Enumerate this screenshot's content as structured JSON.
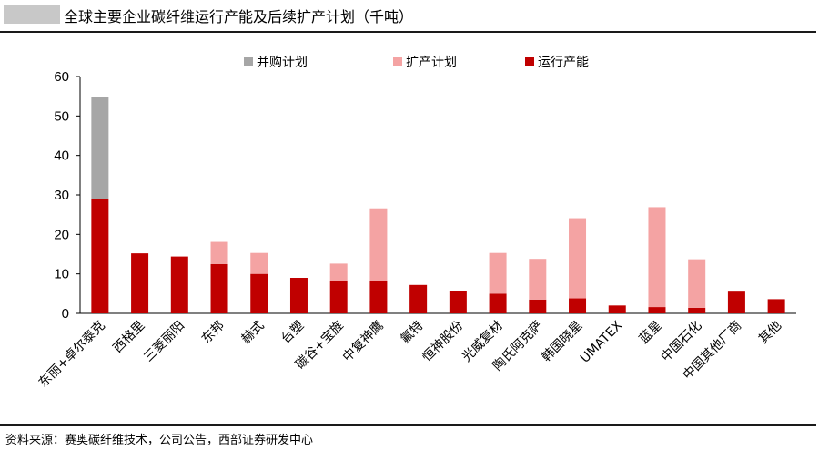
{
  "header": {
    "title": "全球主要企业碳纤维运行产能及后续扩产计划（千吨）"
  },
  "footer": {
    "source": "资料来源：赛奥碳纤维技术，公司公告，西部证券研发中心"
  },
  "colors": {
    "operating": "#c00000",
    "expansion": "#f4a3a3",
    "acquisition": "#a6a6a6"
  },
  "chart_data": {
    "type": "bar",
    "stacked": true,
    "title": "全球主要企业碳纤维运行产能及后续扩产计划（千吨）",
    "xlabel": "",
    "ylabel": "",
    "ylim": [
      0,
      60
    ],
    "yticks": [
      0,
      10,
      20,
      30,
      40,
      50,
      60
    ],
    "grid": false,
    "legend_position": "top",
    "categories": [
      "东丽+卓尔泰克",
      "西格里",
      "三菱丽阳",
      "东邦",
      "赫式",
      "台塑",
      "碳谷+宝旌",
      "中复神鹰",
      "氟特",
      "恒神股份",
      "光威复材",
      "陶氏阿克萨",
      "韩国晓星",
      "UMATEX",
      "蓝星",
      "中国石化",
      "中国其他厂商",
      "其他"
    ],
    "series": [
      {
        "name": "运行产能",
        "color": "#c00000",
        "values": [
          29,
          15.2,
          14.4,
          12.5,
          10,
          9,
          8.3,
          8.3,
          7.2,
          5.6,
          5,
          3.5,
          3.8,
          2,
          1.6,
          1.4,
          5.5,
          3.6
        ]
      },
      {
        "name": "扩产计划",
        "color": "#f4a3a3",
        "values": [
          0,
          0,
          0,
          5.6,
          5.3,
          0,
          4.3,
          18.3,
          0,
          0,
          10.3,
          10.3,
          20.3,
          0,
          25.3,
          12.3,
          0,
          0
        ]
      },
      {
        "name": "并购计划",
        "color": "#a6a6a6",
        "values": [
          25.7,
          0,
          0,
          0,
          0,
          0,
          0,
          0,
          0,
          0,
          0,
          0,
          0,
          0,
          0,
          0,
          0,
          0
        ]
      }
    ],
    "legend_order": [
      "并购计划",
      "扩产计划",
      "运行产能"
    ]
  }
}
